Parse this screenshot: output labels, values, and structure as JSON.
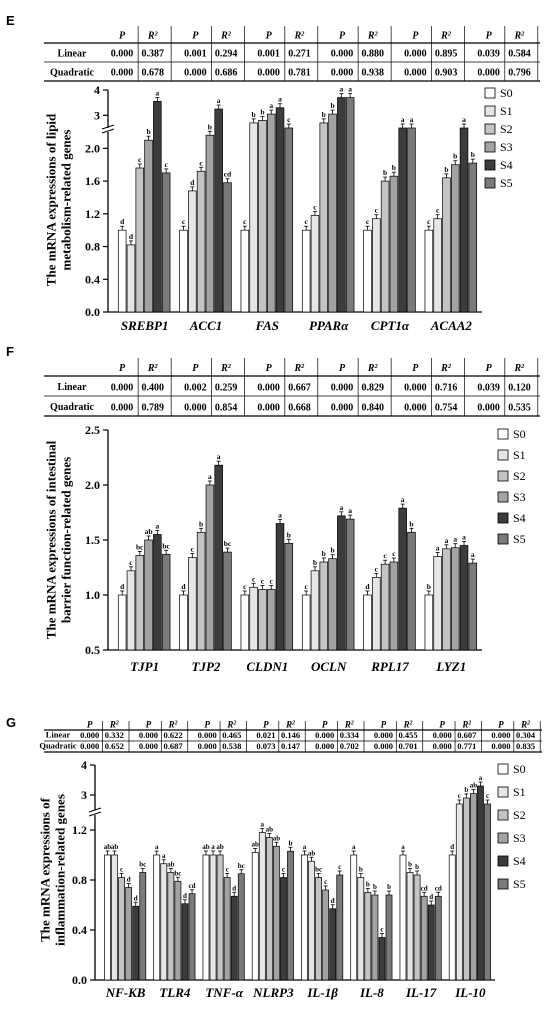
{
  "panels": [
    "E",
    "F",
    "G"
  ],
  "stats_tables": [
    {
      "row_labels": [
        "Linear",
        "Quadratic"
      ],
      "groups": [
        {
          "p": [
            "0.000",
            "0.000"
          ],
          "r2": [
            "0.387",
            "0.678"
          ]
        },
        {
          "p": [
            "0.001",
            "0.000"
          ],
          "r2": [
            "0.294",
            "0.686"
          ]
        },
        {
          "p": [
            "0.001",
            "0.000"
          ],
          "r2": [
            "0.271",
            "0.781"
          ]
        },
        {
          "p": [
            "0.000",
            "0.000"
          ],
          "r2": [
            "0.880",
            "0.938"
          ]
        },
        {
          "p": [
            "0.000",
            "0.000"
          ],
          "r2": [
            "0.895",
            "0.903"
          ]
        },
        {
          "p": [
            "0.039",
            "0.000"
          ],
          "r2": [
            "0.584",
            "0.796"
          ]
        }
      ]
    },
    {
      "row_labels": [
        "Linear",
        "Quadratic"
      ],
      "groups": [
        {
          "p": [
            "0.000",
            "0.000"
          ],
          "r2": [
            "0.400",
            "0.789"
          ]
        },
        {
          "p": [
            "0.002",
            "0.000"
          ],
          "r2": [
            "0.259",
            "0.854"
          ]
        },
        {
          "p": [
            "0.000",
            "0.000"
          ],
          "r2": [
            "0.667",
            "0.668"
          ]
        },
        {
          "p": [
            "0.000",
            "0.000"
          ],
          "r2": [
            "0.829",
            "0.840"
          ]
        },
        {
          "p": [
            "0.000",
            "0.000"
          ],
          "r2": [
            "0.716",
            "0.754"
          ]
        },
        {
          "p": [
            "0.039",
            "0.000"
          ],
          "r2": [
            "0.120",
            "0.535"
          ]
        }
      ]
    },
    {
      "row_labels": [
        "Linear",
        "Quadratic"
      ],
      "groups": [
        {
          "p": [
            "0.000",
            "0.000"
          ],
          "r2": [
            "0.332",
            "0.652"
          ]
        },
        {
          "p": [
            "0.000",
            "0.000"
          ],
          "r2": [
            "0.622",
            "0.687"
          ]
        },
        {
          "p": [
            "0.000",
            "0.000"
          ],
          "r2": [
            "0.465",
            "0.538"
          ]
        },
        {
          "p": [
            "0.021",
            "0.073"
          ],
          "r2": [
            "0.146",
            "0.147"
          ]
        },
        {
          "p": [
            "0.000",
            "0.000"
          ],
          "r2": [
            "0.334",
            "0.702"
          ]
        },
        {
          "p": [
            "0.000",
            "0.000"
          ],
          "r2": [
            "0.455",
            "0.701"
          ]
        },
        {
          "p": [
            "0.000",
            "0.000"
          ],
          "r2": [
            "0.607",
            "0.771"
          ]
        },
        {
          "p": [
            "0.000",
            "0.000"
          ],
          "r2": [
            "0.304",
            "0.835"
          ]
        }
      ]
    }
  ],
  "colors": {
    "S0": "#ffffff",
    "S1": "#e6e6e6",
    "S2": "#c4c4c4",
    "S3": "#a3a3a3",
    "S4": "#3c3c3c",
    "S5": "#7a7a7a"
  },
  "chart_data": [
    {
      "type": "bar",
      "panel": "E",
      "ylabel": "The mRNA expressions of lipid metabolism-related genes",
      "categories": [
        "SREBP1",
        "ACC1",
        "FAS",
        "PPARα",
        "CPT1α",
        "ACAA2"
      ],
      "legend": [
        "S0",
        "S1",
        "S2",
        "S3",
        "S4",
        "S5"
      ],
      "legend_position": "right",
      "broken_axis": true,
      "ylim": [
        0,
        4
      ],
      "yticks": [
        "0.0",
        "0.4",
        "0.8",
        "1.2",
        "1.6",
        "2.0",
        "3",
        "4"
      ],
      "series": [
        {
          "name": "S0",
          "values": [
            1.0,
            1.0,
            1.0,
            1.0,
            1.0,
            1.0
          ],
          "letters": [
            "d",
            "c",
            "c",
            "c",
            "c",
            "c"
          ]
        },
        {
          "name": "S1",
          "values": [
            0.82,
            1.48,
            2.7,
            1.18,
            1.14,
            1.14
          ],
          "letters": [
            "d",
            "d",
            "b",
            "c",
            "c",
            "c"
          ]
        },
        {
          "name": "S2",
          "values": [
            1.76,
            1.72,
            2.8,
            2.7,
            1.6,
            1.64
          ],
          "letters": [
            "c",
            "c",
            "b",
            "b",
            "b",
            "b"
          ]
        },
        {
          "name": "S3",
          "values": [
            2.1,
            2.16,
            3.05,
            3.05,
            1.66,
            1.8
          ],
          "letters": [
            "b",
            "b",
            "a",
            "b",
            "b",
            "b"
          ]
        },
        {
          "name": "S4",
          "values": [
            3.55,
            3.25,
            3.3,
            3.7,
            2.5,
            2.5
          ],
          "letters": [
            "a",
            "a",
            "a",
            "a",
            "a",
            "a"
          ]
        },
        {
          "name": "S5",
          "values": [
            1.7,
            1.58,
            2.5,
            3.7,
            2.5,
            1.82
          ],
          "letters": [
            "c",
            "cd",
            "c",
            "a",
            "a",
            "b"
          ]
        }
      ]
    },
    {
      "type": "bar",
      "panel": "F",
      "ylabel": "The mRNA expressions of intestinal barrier function-related genes",
      "categories": [
        "TJP1",
        "TJP2",
        "CLDN1",
        "OCLN",
        "RPL17",
        "LYZ1"
      ],
      "legend": [
        "S0",
        "S1",
        "S2",
        "S3",
        "S4",
        "S5"
      ],
      "legend_position": "right",
      "ylim": [
        0.5,
        2.5
      ],
      "yticks": [
        "0.5",
        "1.0",
        "1.5",
        "2.0",
        "2.5"
      ],
      "series": [
        {
          "name": "S0",
          "values": [
            1.0,
            1.0,
            1.0,
            1.0,
            1.0,
            1.0
          ],
          "letters": [
            "d",
            "d",
            "c",
            "c",
            "d",
            "b"
          ]
        },
        {
          "name": "S1",
          "values": [
            1.22,
            1.34,
            1.07,
            1.22,
            1.16,
            1.35
          ],
          "letters": [
            "c",
            "c",
            "c",
            "b",
            "c",
            "a"
          ]
        },
        {
          "name": "S2",
          "values": [
            1.36,
            1.57,
            1.05,
            1.3,
            1.28,
            1.42
          ],
          "letters": [
            "bc",
            "b",
            "c",
            "b",
            "c",
            "a"
          ]
        },
        {
          "name": "S3",
          "values": [
            1.5,
            2.0,
            1.05,
            1.33,
            1.3,
            1.43
          ],
          "letters": [
            "ab",
            "a",
            "c",
            "b",
            "c",
            "a"
          ]
        },
        {
          "name": "S4",
          "values": [
            1.55,
            2.18,
            1.65,
            1.72,
            1.79,
            1.45
          ],
          "letters": [
            "a",
            "a",
            "a",
            "a",
            "a",
            "a"
          ]
        },
        {
          "name": "S5",
          "values": [
            1.37,
            1.39,
            1.47,
            1.69,
            1.57,
            1.29
          ],
          "letters": [
            "bc",
            "bc",
            "b",
            "a",
            "b",
            "a"
          ]
        }
      ]
    },
    {
      "type": "bar",
      "panel": "G",
      "ylabel": "The mRNA expressions of inflammation-related genes",
      "categories": [
        "NF-KB",
        "TLR4",
        "TNF-α",
        "NLRP3",
        "IL-1β",
        "IL-8",
        "IL-17",
        "IL-10"
      ],
      "legend": [
        "S0",
        "S1",
        "S2",
        "S3",
        "S4",
        "S5"
      ],
      "legend_position": "right",
      "broken_axis": true,
      "ylim": [
        0,
        4
      ],
      "yticks": [
        "0.0",
        "0.4",
        "0.8",
        "1.2",
        "3",
        "4"
      ],
      "series": [
        {
          "name": "S0",
          "values": [
            1.0,
            1.0,
            1.0,
            1.02,
            1.0,
            1.0,
            1.0,
            1.0
          ],
          "letters": [
            "ab",
            "a",
            "ab",
            "ab",
            "a",
            "a",
            "a",
            "d"
          ]
        },
        {
          "name": "S1",
          "values": [
            1.0,
            0.93,
            1.0,
            1.18,
            0.95,
            0.82,
            0.86,
            2.7
          ],
          "letters": [
            "ab",
            "a",
            "a",
            "a",
            "ab",
            "b",
            "b",
            "c"
          ]
        },
        {
          "name": "S2",
          "values": [
            0.82,
            0.86,
            1.0,
            1.14,
            0.82,
            0.7,
            0.84,
            2.9
          ],
          "letters": [
            "c",
            "ab",
            "ab",
            "ab",
            "bc",
            "b",
            "b",
            "b"
          ]
        },
        {
          "name": "S3",
          "values": [
            0.74,
            0.79,
            0.82,
            1.07,
            0.72,
            0.68,
            0.67,
            3.05
          ],
          "letters": [
            "d",
            "bc",
            "c",
            "ab",
            "c",
            "b",
            "cd",
            "ab"
          ]
        },
        {
          "name": "S4",
          "values": [
            0.59,
            0.61,
            0.67,
            0.82,
            0.57,
            0.34,
            0.6,
            3.3
          ],
          "letters": [
            "d",
            "d",
            "d",
            "c",
            "d",
            "c",
            "d",
            "a"
          ]
        },
        {
          "name": "S5",
          "values": [
            0.86,
            0.69,
            0.85,
            1.03,
            0.84,
            0.68,
            0.67,
            2.7
          ],
          "letters": [
            "bc",
            "cd",
            "bc",
            "b",
            "c",
            "b",
            "cd",
            "c"
          ]
        }
      ]
    }
  ]
}
